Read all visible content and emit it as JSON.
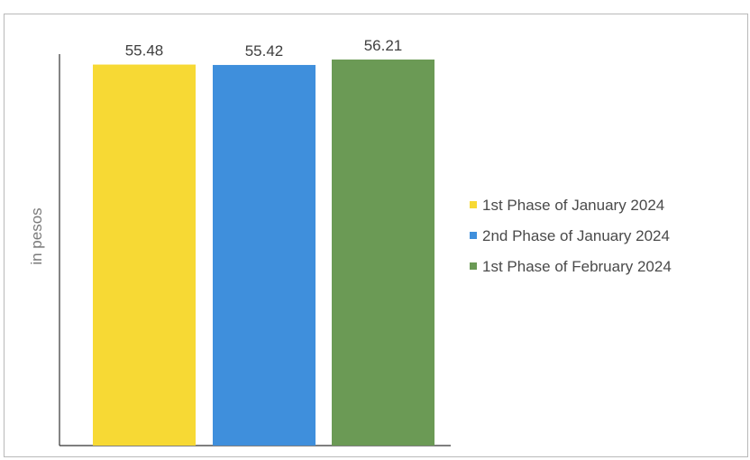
{
  "chart_data": {
    "type": "bar",
    "title": "",
    "xlabel": "",
    "ylabel": "in pesos",
    "ylim": [
      0,
      57
    ],
    "grid": false,
    "legend_position": "right",
    "categories": [
      "1st Phase of January 2024",
      "2nd Phase of January 2024",
      "1st Phase of February 2024"
    ],
    "values": [
      55.48,
      55.42,
      56.21
    ],
    "value_labels": [
      "55.48",
      "55.42",
      "56.21"
    ],
    "colors": [
      "#f7d934",
      "#3f8fdc",
      "#6b9a55"
    ]
  }
}
